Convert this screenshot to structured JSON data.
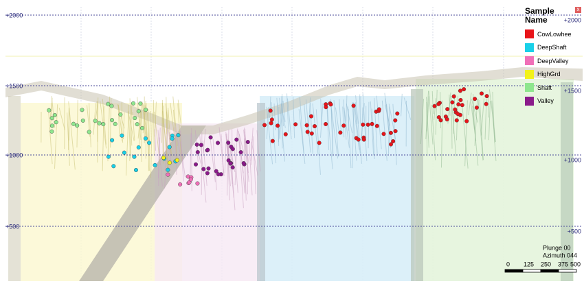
{
  "elevation_labels": [
    "+2000",
    "+1500",
    "+1000",
    "+500"
  ],
  "legend": {
    "title": "Sample Name",
    "close": "x",
    "items": [
      {
        "label": "CowLowhee",
        "color": "#e8141a"
      },
      {
        "label": "DeepShaft",
        "color": "#19d0e8"
      },
      {
        "label": "DeepValley",
        "color": "#f070b8"
      },
      {
        "label": "HighGrd",
        "color": "#f2f21a"
      },
      {
        "label": "Shaft",
        "color": "#8ee68e"
      },
      {
        "label": "Valley",
        "color": "#8a1a8a"
      }
    ]
  },
  "view": {
    "plunge": "Plunge 00",
    "azimuth": "Azimuth 044"
  },
  "scale_bar": {
    "labels": [
      "0",
      "125",
      "250",
      "375",
      "500"
    ]
  }
}
